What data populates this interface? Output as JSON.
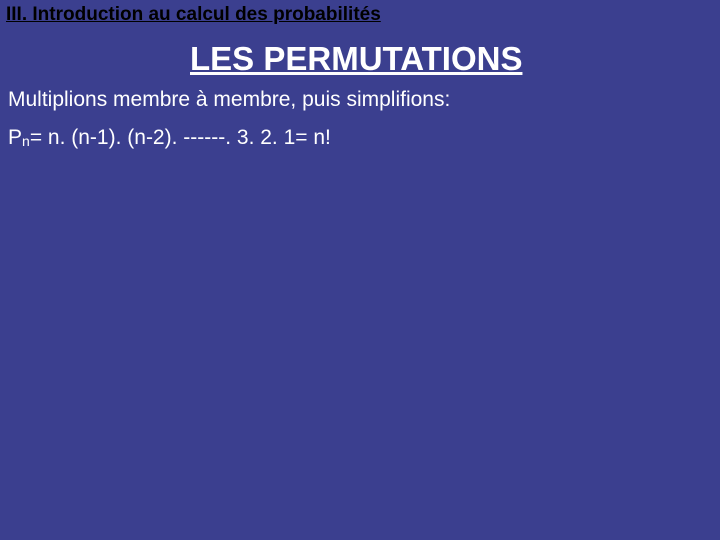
{
  "colors": {
    "background": "#3b3f8f",
    "header_text": "#000000",
    "title_text": "#ffffff",
    "body_text": "#ffffff"
  },
  "typography": {
    "header_fontsize": 19,
    "title_fontsize": 33,
    "body_fontsize": 21,
    "subscript_fontsize": 14,
    "font_family": "Arial"
  },
  "header": {
    "text": "III. Introduction au calcul des probabilités"
  },
  "title": {
    "text": "LES PERMUTATIONS"
  },
  "body": {
    "line1": "Multiplions membre à membre, puis simplifions:"
  },
  "formula": {
    "prefix": "P",
    "subscript": "n",
    "rest": "= n. (n-1). (n-2). ------. 3. 2. 1= n!"
  }
}
